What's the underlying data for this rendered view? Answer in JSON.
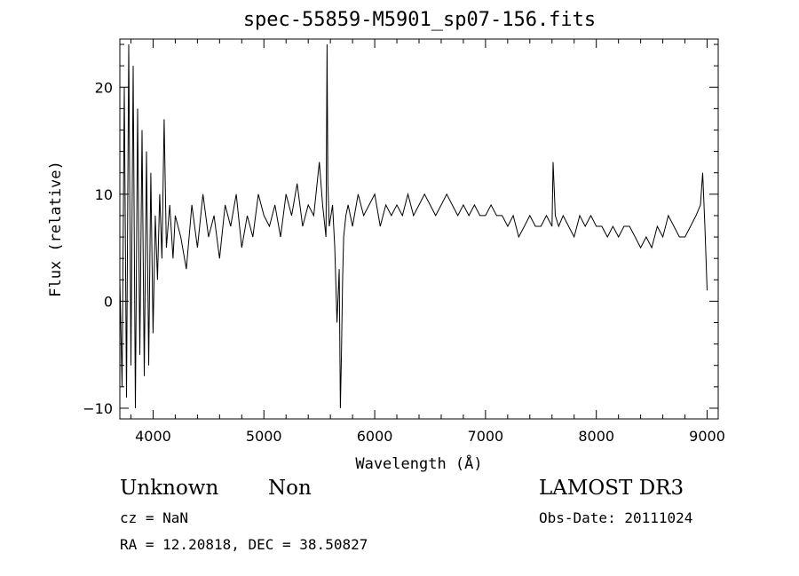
{
  "chart_data": {
    "type": "line",
    "title": "spec-55859-M5901_sp07-156.fits",
    "xlabel": "Wavelength (Å)",
    "ylabel": "Flux (relative)",
    "xlim": [
      3700,
      9100
    ],
    "ylim": [
      -11,
      24.5
    ],
    "xticks": [
      4000,
      5000,
      6000,
      7000,
      8000,
      9000
    ],
    "yticks": [
      -10,
      0,
      10,
      20
    ],
    "grid": false,
    "series": [
      {
        "name": "flux",
        "x": [
          3700,
          3720,
          3740,
          3760,
          3780,
          3800,
          3820,
          3840,
          3860,
          3880,
          3900,
          3920,
          3940,
          3960,
          3980,
          4000,
          4020,
          4040,
          4060,
          4080,
          4100,
          4120,
          4150,
          4180,
          4200,
          4250,
          4300,
          4350,
          4400,
          4450,
          4500,
          4550,
          4600,
          4650,
          4700,
          4750,
          4800,
          4850,
          4900,
          4950,
          5000,
          5050,
          5100,
          5150,
          5200,
          5250,
          5300,
          5350,
          5400,
          5450,
          5500,
          5530,
          5560,
          5570,
          5577,
          5590,
          5620,
          5640,
          5660,
          5680,
          5690,
          5700,
          5710,
          5720,
          5740,
          5760,
          5800,
          5850,
          5900,
          5950,
          6000,
          6050,
          6100,
          6150,
          6200,
          6250,
          6300,
          6350,
          6400,
          6450,
          6500,
          6550,
          6600,
          6650,
          6700,
          6750,
          6800,
          6850,
          6900,
          6950,
          7000,
          7050,
          7100,
          7150,
          7200,
          7250,
          7300,
          7350,
          7400,
          7450,
          7500,
          7550,
          7600,
          7610,
          7630,
          7660,
          7700,
          7750,
          7800,
          7850,
          7900,
          7950,
          8000,
          8050,
          8100,
          8150,
          8200,
          8250,
          8300,
          8350,
          8400,
          8450,
          8500,
          8550,
          8600,
          8650,
          8700,
          8750,
          8800,
          8850,
          8900,
          8940,
          8960,
          8980,
          9000
        ],
        "y": [
          2,
          -8,
          20,
          -9,
          24,
          -6,
          22,
          -10,
          18,
          -5,
          16,
          -7,
          14,
          -6,
          12,
          -3,
          8,
          2,
          10,
          4,
          17,
          5,
          9,
          4,
          8,
          6,
          3,
          9,
          5,
          10,
          6,
          8,
          4,
          9,
          7,
          10,
          5,
          8,
          6,
          10,
          8,
          7,
          9,
          6,
          10,
          8,
          11,
          7,
          9,
          8,
          13,
          9,
          6,
          24,
          11,
          7,
          9,
          5,
          -2,
          3,
          -10,
          -5,
          2,
          6,
          8,
          9,
          7,
          10,
          8,
          9,
          10,
          7,
          9,
          8,
          9,
          8,
          10,
          8,
          9,
          10,
          9,
          8,
          9,
          10,
          9,
          8,
          9,
          8,
          9,
          8,
          8,
          9,
          8,
          8,
          7,
          8,
          6,
          7,
          8,
          7,
          7,
          8,
          7,
          13,
          8,
          7,
          8,
          7,
          6,
          8,
          7,
          8,
          7,
          7,
          6,
          7,
          6,
          7,
          7,
          6,
          5,
          6,
          5,
          7,
          6,
          8,
          7,
          6,
          6,
          7,
          8,
          9,
          12,
          7,
          1
        ]
      }
    ],
    "annotations": {
      "object_class": "Unknown",
      "object_subclass": "Non",
      "survey": "LAMOST DR3",
      "redshift": "cz = NaN",
      "obs_date": "Obs-Date: 20111024",
      "coords": "RA =  12.20818, DEC =  38.50827"
    }
  }
}
